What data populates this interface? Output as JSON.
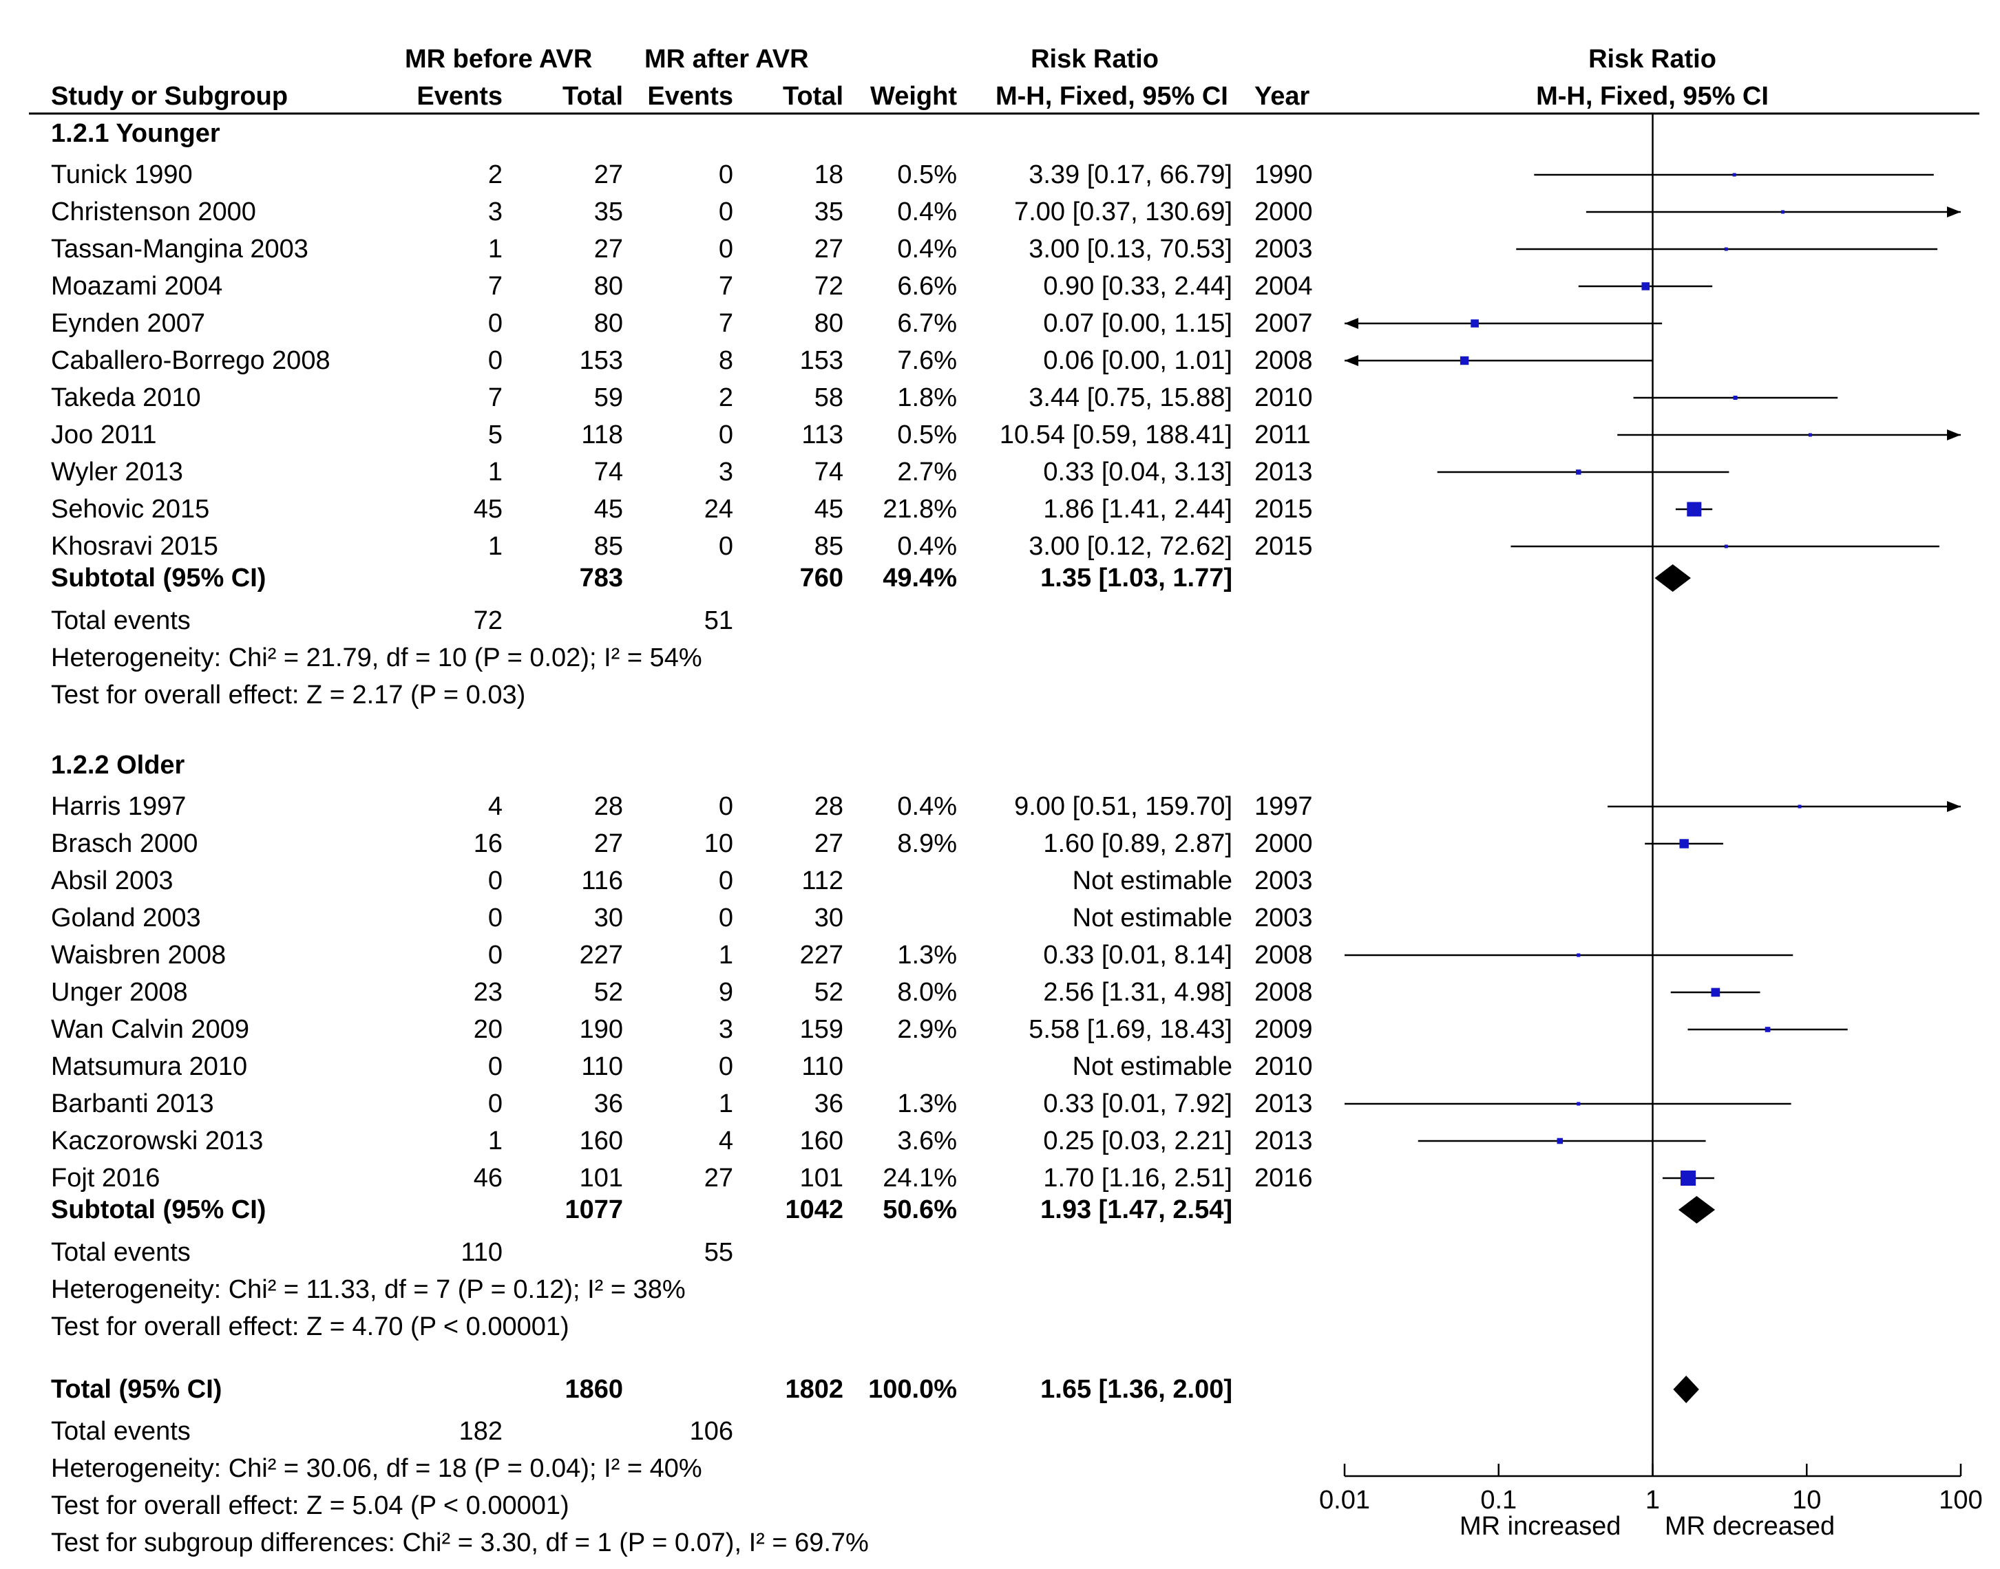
{
  "header": {
    "group1": "MR before AVR",
    "group2": "MR after AVR",
    "rr_title": "Risk Ratio",
    "rr_method": "M-H, Fixed, 95% CI",
    "plot_title": "Risk Ratio",
    "plot_method": "M-H, Fixed, 95% CI",
    "study": "Study or Subgroup",
    "events1": "Events",
    "total1": "Total",
    "events2": "Events",
    "total2": "Total",
    "weight": "Weight",
    "year": "Year"
  },
  "footer": {
    "total_label": "Total (95% CI)",
    "total1": "1860",
    "total2": "1802",
    "weight": "100.0%",
    "rr": "1.65 [1.36, 2.00]",
    "events_label": "Total events",
    "events1": "182",
    "events2": "106",
    "heterogeneity": "Heterogeneity: Chi² = 30.06, df = 18 (P = 0.04); I² = 40%",
    "overall": "Test for overall effect: Z = 5.04 (P < 0.00001)",
    "subgroup_diff": "Test for subgroup differences: Chi² = 3.30, df = 1 (P = 0.07), I² = 69.7%"
  },
  "chart_data": {
    "type": "forest",
    "title": "Risk Ratio",
    "xlabel": "M-H, Fixed, 95% CI",
    "x_scale": "log",
    "xlim": [
      0.01,
      100
    ],
    "ticks": [
      "0.01",
      "0.1",
      "1",
      "10",
      "100"
    ],
    "tick_values": [
      0.01,
      0.1,
      1,
      10,
      100
    ],
    "left_label": "MR increased",
    "right_label": "MR decreased",
    "diamond_color": "#000000",
    "marker_color": "#1515c8",
    "overall": {
      "rr": 1.65,
      "lo": 1.36,
      "hi": 2.0
    },
    "subgroups": [
      {
        "name": "1.2.1 Younger",
        "studies": [
          {
            "study": "Tunick 1990",
            "e1": "2",
            "t1": "27",
            "e2": "0",
            "t2": "18",
            "weight": "0.5%",
            "ci_text": "3.39 [0.17, 66.79]",
            "year": "1990",
            "rr": 3.39,
            "lo": 0.17,
            "hi": 66.79
          },
          {
            "study": "Christenson 2000",
            "e1": "3",
            "t1": "35",
            "e2": "0",
            "t2": "35",
            "weight": "0.4%",
            "ci_text": "7.00 [0.37, 130.69]",
            "year": "2000",
            "rr": 7.0,
            "lo": 0.37,
            "hi": 130.69
          },
          {
            "study": "Tassan-Mangina 2003",
            "e1": "1",
            "t1": "27",
            "e2": "0",
            "t2": "27",
            "weight": "0.4%",
            "ci_text": "3.00 [0.13, 70.53]",
            "year": "2003",
            "rr": 3.0,
            "lo": 0.13,
            "hi": 70.53
          },
          {
            "study": "Moazami 2004",
            "e1": "7",
            "t1": "80",
            "e2": "7",
            "t2": "72",
            "weight": "6.6%",
            "ci_text": "0.90 [0.33, 2.44]",
            "year": "2004",
            "rr": 0.9,
            "lo": 0.33,
            "hi": 2.44
          },
          {
            "study": "Eynden 2007",
            "e1": "0",
            "t1": "80",
            "e2": "7",
            "t2": "80",
            "weight": "6.7%",
            "ci_text": "0.07 [0.00, 1.15]",
            "year": "2007",
            "rr": 0.07,
            "lo": 0.0,
            "hi": 1.15
          },
          {
            "study": "Caballero-Borrego 2008",
            "e1": "0",
            "t1": "153",
            "e2": "8",
            "t2": "153",
            "weight": "7.6%",
            "ci_text": "0.06 [0.00, 1.01]",
            "year": "2008",
            "rr": 0.06,
            "lo": 0.0,
            "hi": 1.01
          },
          {
            "study": "Takeda 2010",
            "e1": "7",
            "t1": "59",
            "e2": "2",
            "t2": "58",
            "weight": "1.8%",
            "ci_text": "3.44 [0.75, 15.88]",
            "year": "2010",
            "rr": 3.44,
            "lo": 0.75,
            "hi": 15.88
          },
          {
            "study": "Joo 2011",
            "e1": "5",
            "t1": "118",
            "e2": "0",
            "t2": "113",
            "weight": "0.5%",
            "ci_text": "10.54 [0.59, 188.41]",
            "year": "2011",
            "rr": 10.54,
            "lo": 0.59,
            "hi": 188.41
          },
          {
            "study": "Wyler 2013",
            "e1": "1",
            "t1": "74",
            "e2": "3",
            "t2": "74",
            "weight": "2.7%",
            "ci_text": "0.33 [0.04, 3.13]",
            "year": "2013",
            "rr": 0.33,
            "lo": 0.04,
            "hi": 3.13
          },
          {
            "study": "Sehovic 2015",
            "e1": "45",
            "t1": "45",
            "e2": "24",
            "t2": "45",
            "weight": "21.8%",
            "ci_text": "1.86 [1.41, 2.44]",
            "year": "2015",
            "rr": 1.86,
            "lo": 1.41,
            "hi": 2.44
          },
          {
            "study": "Khosravi 2015",
            "e1": "1",
            "t1": "85",
            "e2": "0",
            "t2": "85",
            "weight": "0.4%",
            "ci_text": "3.00 [0.12, 72.62]",
            "year": "2015",
            "rr": 3.0,
            "lo": 0.12,
            "hi": 72.62
          }
        ],
        "subtotal": {
          "label": "Subtotal (95% CI)",
          "t1": "783",
          "t2": "760",
          "weight": "49.4%",
          "ci_text": "1.35 [1.03, 1.77]",
          "rr": 1.35,
          "lo": 1.03,
          "hi": 1.77
        },
        "events_label": "Total events",
        "events1": "72",
        "events2": "51",
        "heterogeneity": "Heterogeneity: Chi² = 21.79, df = 10 (P = 0.02); I² = 54%",
        "overall": "Test for overall effect: Z = 2.17 (P = 0.03)"
      },
      {
        "name": "1.2.2 Older",
        "studies": [
          {
            "study": "Harris 1997",
            "e1": "4",
            "t1": "28",
            "e2": "0",
            "t2": "28",
            "weight": "0.4%",
            "ci_text": "9.00 [0.51, 159.70]",
            "year": "1997",
            "rr": 9.0,
            "lo": 0.51,
            "hi": 159.7
          },
          {
            "study": "Brasch 2000",
            "e1": "16",
            "t1": "27",
            "e2": "10",
            "t2": "27",
            "weight": "8.9%",
            "ci_text": "1.60 [0.89, 2.87]",
            "year": "2000",
            "rr": 1.6,
            "lo": 0.89,
            "hi": 2.87
          },
          {
            "study": "Absil 2003",
            "e1": "0",
            "t1": "116",
            "e2": "0",
            "t2": "112",
            "weight": "",
            "ci_text": "Not estimable",
            "year": "2003",
            "rr": null,
            "lo": null,
            "hi": null
          },
          {
            "study": "Goland 2003",
            "e1": "0",
            "t1": "30",
            "e2": "0",
            "t2": "30",
            "weight": "",
            "ci_text": "Not estimable",
            "year": "2003",
            "rr": null,
            "lo": null,
            "hi": null
          },
          {
            "study": "Waisbren 2008",
            "e1": "0",
            "t1": "227",
            "e2": "1",
            "t2": "227",
            "weight": "1.3%",
            "ci_text": "0.33 [0.01, 8.14]",
            "year": "2008",
            "rr": 0.33,
            "lo": 0.01,
            "hi": 8.14
          },
          {
            "study": "Unger 2008",
            "e1": "23",
            "t1": "52",
            "e2": "9",
            "t2": "52",
            "weight": "8.0%",
            "ci_text": "2.56 [1.31, 4.98]",
            "year": "2008",
            "rr": 2.56,
            "lo": 1.31,
            "hi": 4.98
          },
          {
            "study": "Wan Calvin 2009",
            "e1": "20",
            "t1": "190",
            "e2": "3",
            "t2": "159",
            "weight": "2.9%",
            "ci_text": "5.58 [1.69, 18.43]",
            "year": "2009",
            "rr": 5.58,
            "lo": 1.69,
            "hi": 18.43
          },
          {
            "study": "Matsumura 2010",
            "e1": "0",
            "t1": "110",
            "e2": "0",
            "t2": "110",
            "weight": "",
            "ci_text": "Not estimable",
            "year": "2010",
            "rr": null,
            "lo": null,
            "hi": null
          },
          {
            "study": "Barbanti 2013",
            "e1": "0",
            "t1": "36",
            "e2": "1",
            "t2": "36",
            "weight": "1.3%",
            "ci_text": "0.33 [0.01, 7.92]",
            "year": "2013",
            "rr": 0.33,
            "lo": 0.01,
            "hi": 7.92
          },
          {
            "study": "Kaczorowski 2013",
            "e1": "1",
            "t1": "160",
            "e2": "4",
            "t2": "160",
            "weight": "3.6%",
            "ci_text": "0.25 [0.03, 2.21]",
            "year": "2013",
            "rr": 0.25,
            "lo": 0.03,
            "hi": 2.21
          },
          {
            "study": "Fojt 2016",
            "e1": "46",
            "t1": "101",
            "e2": "27",
            "t2": "101",
            "weight": "24.1%",
            "ci_text": "1.70 [1.16, 2.51]",
            "year": "2016",
            "rr": 1.7,
            "lo": 1.16,
            "hi": 2.51
          }
        ],
        "subtotal": {
          "label": "Subtotal (95% CI)",
          "t1": "1077",
          "t2": "1042",
          "weight": "50.6%",
          "ci_text": "1.93 [1.47, 2.54]",
          "rr": 1.93,
          "lo": 1.47,
          "hi": 2.54
        },
        "events_label": "Total events",
        "events1": "110",
        "events2": "55",
        "heterogeneity": "Heterogeneity: Chi² = 11.33, df = 7 (P = 0.12); I² = 38%",
        "overall": "Test for overall effect: Z = 4.70 (P < 0.00001)"
      }
    ]
  }
}
